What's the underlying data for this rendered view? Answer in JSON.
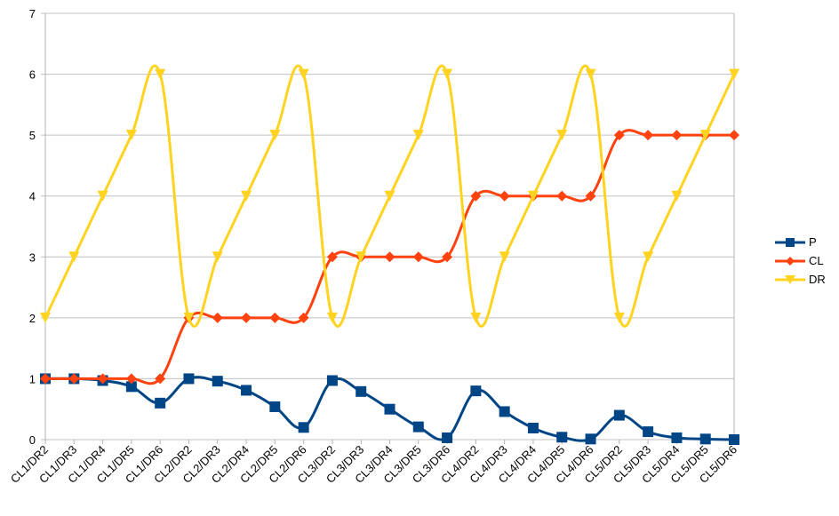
{
  "chart_data": {
    "type": "line",
    "title": "",
    "xlabel": "",
    "ylabel": "",
    "ylim": [
      0,
      7
    ],
    "yticks": [
      0,
      1,
      2,
      3,
      4,
      5,
      6,
      7
    ],
    "grid": true,
    "legend_position": "right",
    "categories": [
      "CL1/DR2",
      "CL1/DR3",
      "CL1/DR4",
      "CL1/DR5",
      "CL1/DR6",
      "CL2/DR2",
      "CL2/DR3",
      "CL2/DR4",
      "CL2/DR5",
      "CL2/DR6",
      "CL3/DR2",
      "CL3/DR3",
      "CL3/DR4",
      "CL3/DR5",
      "CL3/DR6",
      "CL4/DR2",
      "CL4/DR3",
      "CL4/DR4",
      "CL4/DR5",
      "CL4/DR6",
      "CL5/DR2",
      "CL5/DR3",
      "CL5/DR4",
      "CL5/DR5",
      "CL5/DR6"
    ],
    "series": [
      {
        "name": "P",
        "color": "#004586",
        "marker": "square",
        "values": [
          1.0,
          1.0,
          0.97,
          0.87,
          0.6,
          1.0,
          0.96,
          0.81,
          0.54,
          0.2,
          0.97,
          0.79,
          0.5,
          0.21,
          0.03,
          0.8,
          0.46,
          0.19,
          0.04,
          0.01,
          0.4,
          0.13,
          0.03,
          0.01,
          0.0
        ]
      },
      {
        "name": "CL",
        "color": "#ff420e",
        "marker": "diamond",
        "values": [
          1,
          1,
          1,
          1,
          1,
          2,
          2,
          2,
          2,
          2,
          3,
          3,
          3,
          3,
          3,
          4,
          4,
          4,
          4,
          4,
          5,
          5,
          5,
          5,
          5
        ]
      },
      {
        "name": "DR",
        "color": "#ffd320",
        "marker": "triangle-down",
        "values": [
          2,
          3,
          4,
          5,
          6,
          2,
          3,
          4,
          5,
          6,
          2,
          3,
          4,
          5,
          6,
          2,
          3,
          4,
          5,
          6,
          2,
          3,
          4,
          5,
          6
        ]
      }
    ]
  },
  "legend": {
    "items": [
      {
        "label": "P",
        "color": "#004586"
      },
      {
        "label": "CL",
        "color": "#ff420e"
      },
      {
        "label": "DR",
        "color": "#ffd320"
      }
    ]
  }
}
